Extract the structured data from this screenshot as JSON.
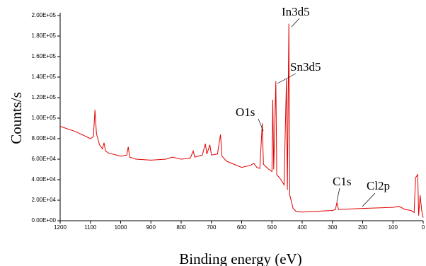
{
  "chart_data": {
    "type": "line",
    "x_label": "Binding energy (eV)",
    "y_label": "Counts/s",
    "annotations": [
      "In3d5",
      "Sn3d5",
      "O1s",
      "C1s",
      "Cl2p"
    ],
    "xlim": [
      1200,
      0
    ],
    "xticks": [
      1200,
      1100,
      1000,
      900,
      800,
      700,
      600,
      500,
      400,
      300,
      200,
      100,
      0
    ],
    "ylim": [
      0,
      200000
    ],
    "yticks": [
      {
        "value": 0,
        "label": "0.00E+00"
      },
      {
        "value": 20000,
        "label": "2.00E+04"
      },
      {
        "value": 40000,
        "label": "4.00E+04"
      },
      {
        "value": 60000,
        "label": "6.00E+04"
      },
      {
        "value": 80000,
        "label": "8.00E+04"
      },
      {
        "value": 100000,
        "label": "1.00E+05"
      },
      {
        "value": 120000,
        "label": "1.20E+05"
      },
      {
        "value": 140000,
        "label": "1.40E+05"
      },
      {
        "value": 160000,
        "label": "1.60E+05"
      },
      {
        "value": 180000,
        "label": "1.80E+05"
      },
      {
        "value": 200000,
        "label": "2.00E+05"
      }
    ],
    "grid": false,
    "series": [
      {
        "color": "#e00000",
        "x": [
          1200,
          1150,
          1100,
          1090,
          1085,
          1080,
          1070,
          1060,
          1055,
          1050,
          1040,
          1000,
          980,
          975,
          970,
          950,
          900,
          850,
          830,
          800,
          770,
          760,
          755,
          730,
          720,
          715,
          705,
          700,
          680,
          670,
          665,
          650,
          600,
          570,
          560,
          550,
          540,
          532,
          528,
          510,
          500,
          497,
          494,
          487,
          484,
          470,
          460,
          452,
          449,
          444,
          441,
          430,
          420,
          400,
          300,
          290,
          285,
          280,
          200,
          100,
          80,
          60,
          40,
          30,
          25,
          18,
          15,
          10,
          5,
          0
        ],
        "values": [
          92000,
          87000,
          80000,
          82000,
          108000,
          85000,
          74000,
          70000,
          76000,
          68000,
          66000,
          63000,
          64000,
          72000,
          62000,
          60000,
          59000,
          60000,
          62000,
          60000,
          61000,
          68000,
          62000,
          64000,
          75000,
          65000,
          74000,
          64000,
          65000,
          84000,
          63000,
          58000,
          52000,
          54000,
          56000,
          52000,
          51000,
          95000,
          55000,
          50000,
          48000,
          118000,
          50000,
          136000,
          45000,
          40000,
          35000,
          138000,
          30000,
          192000,
          25000,
          12000,
          9000,
          8500,
          10000,
          11000,
          18000,
          11000,
          12000,
          13000,
          14000,
          11000,
          10000,
          8000,
          42000,
          45000,
          5000,
          25000,
          10000,
          3000
        ]
      }
    ]
  }
}
